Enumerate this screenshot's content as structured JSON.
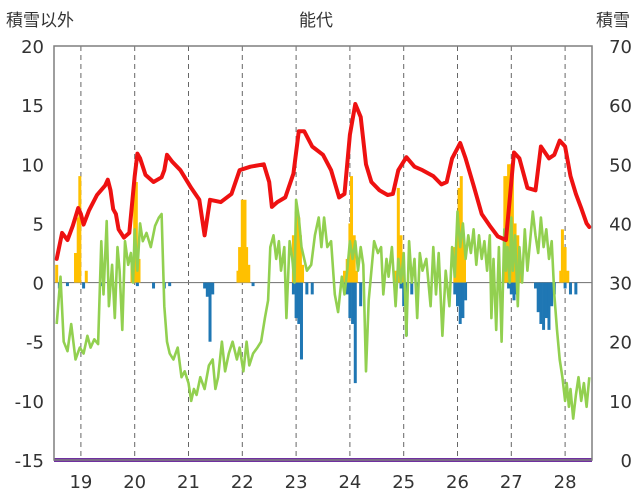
{
  "chart_data": {
    "type": "bar",
    "title": "能代",
    "left_axis_label": "積雪以外",
    "right_axis_label": "積雪",
    "left_ylim": [
      -15,
      20
    ],
    "left_ticks": [
      20,
      15,
      10,
      5,
      0,
      -5,
      -10,
      -15
    ],
    "right_ylim": [
      0,
      70
    ],
    "right_ticks": [
      70,
      60,
      50,
      40,
      30,
      20,
      10,
      0
    ],
    "xlim": [
      18.5,
      28.5
    ],
    "x_ticks": [
      19,
      20,
      21,
      22,
      23,
      24,
      25,
      26,
      27,
      28
    ],
    "x_tick_labels": [
      "19",
      "20",
      "21",
      "22",
      "23",
      "24",
      "25",
      "26",
      "27",
      "28"
    ],
    "grid": "vertical dashed at each day",
    "colors": {
      "red_series": "#ee1111",
      "green_series": "#92d050",
      "orange_bars": "#ffc000",
      "blue_bars": "#1f77b4",
      "snow_depth": "#7030a0"
    },
    "red_series": [
      [
        18.55,
        2.0
      ],
      [
        18.65,
        4.2
      ],
      [
        18.75,
        3.6
      ],
      [
        18.85,
        4.8
      ],
      [
        18.95,
        6.3
      ],
      [
        19.0,
        5.8
      ],
      [
        19.05,
        4.9
      ],
      [
        19.15,
        6.1
      ],
      [
        19.3,
        7.4
      ],
      [
        19.45,
        8.2
      ],
      [
        19.5,
        8.7
      ],
      [
        19.55,
        7.8
      ],
      [
        19.6,
        6.2
      ],
      [
        19.65,
        5.8
      ],
      [
        19.7,
        4.5
      ],
      [
        19.8,
        3.8
      ],
      [
        19.9,
        4.2
      ],
      [
        20.0,
        9.0
      ],
      [
        20.05,
        10.9
      ],
      [
        20.1,
        10.5
      ],
      [
        20.2,
        9.1
      ],
      [
        20.35,
        8.5
      ],
      [
        20.5,
        8.9
      ],
      [
        20.55,
        9.5
      ],
      [
        20.6,
        10.8
      ],
      [
        20.7,
        10.2
      ],
      [
        20.85,
        9.5
      ],
      [
        21.05,
        8.0
      ],
      [
        21.2,
        7.0
      ],
      [
        21.3,
        4.0
      ],
      [
        21.4,
        7.0
      ],
      [
        21.6,
        6.8
      ],
      [
        21.8,
        7.5
      ],
      [
        21.95,
        9.5
      ],
      [
        22.15,
        9.8
      ],
      [
        22.4,
        10.0
      ],
      [
        22.5,
        8.5
      ],
      [
        22.55,
        6.4
      ],
      [
        22.65,
        6.8
      ],
      [
        22.8,
        7.2
      ],
      [
        22.95,
        9.2
      ],
      [
        23.05,
        12.8
      ],
      [
        23.15,
        12.8
      ],
      [
        23.3,
        11.5
      ],
      [
        23.5,
        10.8
      ],
      [
        23.65,
        9.5
      ],
      [
        23.8,
        7.2
      ],
      [
        23.9,
        7.5
      ],
      [
        24.0,
        12.5
      ],
      [
        24.1,
        15.1
      ],
      [
        24.2,
        14.0
      ],
      [
        24.3,
        10.0
      ],
      [
        24.4,
        8.5
      ],
      [
        24.55,
        7.8
      ],
      [
        24.7,
        7.4
      ],
      [
        24.8,
        7.5
      ],
      [
        24.9,
        9.5
      ],
      [
        25.05,
        10.6
      ],
      [
        25.2,
        9.8
      ],
      [
        25.35,
        9.5
      ],
      [
        25.55,
        9.0
      ],
      [
        25.7,
        8.3
      ],
      [
        25.8,
        8.5
      ],
      [
        25.9,
        10.5
      ],
      [
        26.05,
        11.8
      ],
      [
        26.15,
        10.5
      ],
      [
        26.3,
        8.2
      ],
      [
        26.45,
        5.8
      ],
      [
        26.6,
        4.8
      ],
      [
        26.75,
        3.9
      ],
      [
        26.9,
        3.6
      ],
      [
        26.95,
        6.0
      ],
      [
        27.0,
        8.5
      ],
      [
        27.05,
        11.0
      ],
      [
        27.15,
        10.5
      ],
      [
        27.3,
        8.0
      ],
      [
        27.45,
        7.8
      ],
      [
        27.55,
        11.5
      ],
      [
        27.7,
        10.5
      ],
      [
        27.8,
        10.8
      ],
      [
        27.9,
        12.0
      ],
      [
        28.0,
        11.5
      ],
      [
        28.1,
        9.0
      ],
      [
        28.2,
        7.5
      ],
      [
        28.3,
        6.3
      ],
      [
        28.4,
        5.0
      ],
      [
        28.45,
        4.7
      ]
    ],
    "green_series": [
      [
        18.55,
        -3.5
      ],
      [
        18.62,
        0.5
      ],
      [
        18.68,
        -5.0
      ],
      [
        18.75,
        -5.8
      ],
      [
        18.82,
        -3.5
      ],
      [
        18.9,
        -6.5
      ],
      [
        18.98,
        -5.5
      ],
      [
        19.05,
        -6.0
      ],
      [
        19.12,
        -4.5
      ],
      [
        19.18,
        -5.5
      ],
      [
        19.25,
        -4.8
      ],
      [
        19.32,
        -5.2
      ],
      [
        19.38,
        3.5
      ],
      [
        19.42,
        -1.0
      ],
      [
        19.48,
        5.2
      ],
      [
        19.52,
        -2.0
      ],
      [
        19.58,
        1.5
      ],
      [
        19.63,
        -3.0
      ],
      [
        19.68,
        3.0
      ],
      [
        19.72,
        1.0
      ],
      [
        19.77,
        -4.0
      ],
      [
        19.82,
        3.5
      ],
      [
        19.88,
        1.5
      ],
      [
        19.93,
        2.5
      ],
      [
        19.97,
        0.0
      ],
      [
        20.0,
        4.5
      ],
      [
        20.05,
        1.0
      ],
      [
        20.1,
        5.0
      ],
      [
        20.15,
        3.5
      ],
      [
        20.22,
        4.2
      ],
      [
        20.3,
        3.0
      ],
      [
        20.38,
        4.8
      ],
      [
        20.45,
        5.5
      ],
      [
        20.5,
        5.8
      ],
      [
        20.55,
        -2.0
      ],
      [
        20.6,
        -5.0
      ],
      [
        20.65,
        -6.0
      ],
      [
        20.72,
        -6.5
      ],
      [
        20.8,
        -5.5
      ],
      [
        20.87,
        -8.0
      ],
      [
        20.93,
        -7.5
      ],
      [
        21.0,
        -8.5
      ],
      [
        21.05,
        -10.0
      ],
      [
        21.1,
        -9.0
      ],
      [
        21.15,
        -9.5
      ],
      [
        21.22,
        -8.0
      ],
      [
        21.3,
        -9.0
      ],
      [
        21.38,
        -7.0
      ],
      [
        21.45,
        -6.5
      ],
      [
        21.5,
        -9.0
      ],
      [
        21.55,
        -8.0
      ],
      [
        21.62,
        -5.0
      ],
      [
        21.68,
        -7.5
      ],
      [
        21.75,
        -6.0
      ],
      [
        21.82,
        -5.0
      ],
      [
        21.9,
        -6.5
      ],
      [
        21.95,
        -5.5
      ],
      [
        22.02,
        -7.5
      ],
      [
        22.08,
        -5.0
      ],
      [
        22.13,
        -7.0
      ],
      [
        22.2,
        -6.0
      ],
      [
        22.28,
        -5.5
      ],
      [
        22.35,
        -5.0
      ],
      [
        22.42,
        -3.0
      ],
      [
        22.48,
        -1.5
      ],
      [
        22.52,
        3.0
      ],
      [
        22.58,
        4.0
      ],
      [
        22.63,
        2.0
      ],
      [
        22.68,
        3.5
      ],
      [
        22.72,
        1.0
      ],
      [
        22.78,
        3.0
      ],
      [
        22.82,
        -3.0
      ],
      [
        22.88,
        3.5
      ],
      [
        22.93,
        2.0
      ],
      [
        22.97,
        0.0
      ],
      [
        23.0,
        7.0
      ],
      [
        23.05,
        5.5
      ],
      [
        23.1,
        3.0
      ],
      [
        23.15,
        2.0
      ],
      [
        23.2,
        1.0
      ],
      [
        23.28,
        1.5
      ],
      [
        23.35,
        4.0
      ],
      [
        23.42,
        5.5
      ],
      [
        23.47,
        3.0
      ],
      [
        23.52,
        5.5
      ],
      [
        23.58,
        3.0
      ],
      [
        23.65,
        3.5
      ],
      [
        23.72,
        -1.0
      ],
      [
        23.78,
        -2.5
      ],
      [
        23.85,
        0.5
      ],
      [
        23.9,
        -1.0
      ],
      [
        23.95,
        1.0
      ],
      [
        24.0,
        3.5
      ],
      [
        24.05,
        2.0
      ],
      [
        24.1,
        3.5
      ],
      [
        24.15,
        1.0
      ],
      [
        24.2,
        3.0
      ],
      [
        24.25,
        1.5
      ],
      [
        24.3,
        -7.5
      ],
      [
        24.35,
        -1.5
      ],
      [
        24.4,
        1.0
      ],
      [
        24.45,
        3.5
      ],
      [
        24.52,
        2.5
      ],
      [
        24.58,
        3.0
      ],
      [
        24.62,
        -1.0
      ],
      [
        24.68,
        2.0
      ],
      [
        24.72,
        0.5
      ],
      [
        24.78,
        3.0
      ],
      [
        24.85,
        -2.0
      ],
      [
        24.9,
        2.0
      ],
      [
        24.95,
        0.0
      ],
      [
        25.0,
        2.5
      ],
      [
        25.05,
        -4.5
      ],
      [
        25.1,
        3.5
      ],
      [
        25.15,
        0.0
      ],
      [
        25.2,
        2.0
      ],
      [
        25.25,
        -3.0
      ],
      [
        25.3,
        2.5
      ],
      [
        25.35,
        1.0
      ],
      [
        25.42,
        2.0
      ],
      [
        25.5,
        -2.0
      ],
      [
        25.55,
        3.0
      ],
      [
        25.6,
        -1.0
      ],
      [
        25.65,
        2.5
      ],
      [
        25.72,
        -4.5
      ],
      [
        25.78,
        1.0
      ],
      [
        25.85,
        -2.0
      ],
      [
        25.9,
        3.0
      ],
      [
        25.95,
        0.5
      ],
      [
        26.0,
        6.0
      ],
      [
        26.05,
        3.0
      ],
      [
        26.1,
        5.0
      ],
      [
        26.15,
        2.0
      ],
      [
        26.2,
        4.0
      ],
      [
        26.25,
        2.5
      ],
      [
        26.3,
        4.5
      ],
      [
        26.35,
        1.5
      ],
      [
        26.4,
        4.0
      ],
      [
        26.45,
        2.0
      ],
      [
        26.5,
        3.5
      ],
      [
        26.55,
        1.0
      ],
      [
        26.6,
        4.0
      ],
      [
        26.63,
        -3.0
      ],
      [
        26.67,
        2.0
      ],
      [
        26.72,
        -4.0
      ],
      [
        26.77,
        3.0
      ],
      [
        26.82,
        -5.0
      ],
      [
        26.87,
        4.5
      ],
      [
        26.9,
        1.0
      ],
      [
        26.93,
        3.0
      ],
      [
        26.97,
        0.0
      ],
      [
        27.0,
        5.5
      ],
      [
        27.03,
        1.0
      ],
      [
        27.07,
        4.0
      ],
      [
        27.12,
        -2.0
      ],
      [
        27.15,
        3.0
      ],
      [
        27.2,
        0.0
      ],
      [
        27.25,
        4.5
      ],
      [
        27.3,
        1.0
      ],
      [
        27.35,
        3.5
      ],
      [
        27.4,
        6.0
      ],
      [
        27.45,
        4.0
      ],
      [
        27.5,
        2.5
      ],
      [
        27.55,
        5.5
      ],
      [
        27.6,
        3.0
      ],
      [
        27.65,
        4.5
      ],
      [
        27.7,
        2.0
      ],
      [
        27.75,
        3.5
      ],
      [
        27.8,
        -1.0
      ],
      [
        27.85,
        -4.0
      ],
      [
        27.9,
        -6.5
      ],
      [
        27.95,
        -8.0
      ],
      [
        28.0,
        -10.0
      ],
      [
        28.03,
        -8.5
      ],
      [
        28.07,
        -10.5
      ],
      [
        28.1,
        -9.0
      ],
      [
        28.15,
        -11.5
      ],
      [
        28.2,
        -9.5
      ],
      [
        28.25,
        -8.0
      ],
      [
        28.3,
        -10.0
      ],
      [
        28.35,
        -8.5
      ],
      [
        28.4,
        -10.5
      ],
      [
        28.45,
        -8.0
      ]
    ],
    "orange_bars": [
      [
        18.55,
        1.5
      ],
      [
        18.9,
        2.5
      ],
      [
        18.95,
        5.5
      ],
      [
        18.98,
        9.0
      ],
      [
        19.1,
        1.0
      ],
      [
        19.95,
        2.0
      ],
      [
        20.0,
        9.0
      ],
      [
        20.03,
        8.5
      ],
      [
        20.08,
        2.0
      ],
      [
        21.92,
        1.0
      ],
      [
        21.95,
        3.0
      ],
      [
        22.0,
        7.0
      ],
      [
        22.05,
        7.0
      ],
      [
        22.08,
        3.0
      ],
      [
        22.12,
        1.5
      ],
      [
        22.95,
        4.0
      ],
      [
        23.0,
        6.0
      ],
      [
        23.05,
        5.5
      ],
      [
        23.08,
        4.0
      ],
      [
        23.12,
        1.5
      ],
      [
        23.9,
        1.0
      ],
      [
        23.95,
        2.0
      ],
      [
        24.0,
        5.0
      ],
      [
        24.03,
        9.0
      ],
      [
        24.08,
        4.0
      ],
      [
        24.12,
        1.0
      ],
      [
        24.85,
        1.0
      ],
      [
        24.9,
        8.0
      ],
      [
        24.95,
        4.0
      ],
      [
        25.0,
        1.0
      ],
      [
        25.95,
        3.0
      ],
      [
        26.0,
        5.5
      ],
      [
        26.03,
        8.0
      ],
      [
        26.07,
        9.0
      ],
      [
        26.1,
        4.0
      ],
      [
        26.13,
        2.0
      ],
      [
        26.88,
        9.0
      ],
      [
        26.92,
        9.0
      ],
      [
        26.95,
        10.0
      ],
      [
        26.98,
        10.0
      ],
      [
        27.02,
        9.5
      ],
      [
        27.07,
        5.0
      ],
      [
        27.12,
        4.0
      ],
      [
        27.15,
        2.0
      ],
      [
        27.92,
        1.0
      ],
      [
        27.95,
        4.5
      ],
      [
        28.0,
        3.0
      ],
      [
        28.05,
        1.0
      ]
    ],
    "blue_bars": [
      [
        18.6,
        -0.5
      ],
      [
        18.75,
        -0.3
      ],
      [
        19.05,
        -0.5
      ],
      [
        19.4,
        -0.3
      ],
      [
        20.05,
        -0.3
      ],
      [
        20.35,
        -0.5
      ],
      [
        20.55,
        -0.5
      ],
      [
        20.65,
        -0.3
      ],
      [
        21.3,
        -0.5
      ],
      [
        21.35,
        -1.2
      ],
      [
        21.4,
        -5.0
      ],
      [
        21.45,
        -1.0
      ],
      [
        22.2,
        -0.3
      ],
      [
        22.95,
        -1.0
      ],
      [
        23.0,
        -3.0
      ],
      [
        23.05,
        -3.5
      ],
      [
        23.1,
        -6.5
      ],
      [
        23.2,
        -1.0
      ],
      [
        23.3,
        -1.0
      ],
      [
        23.9,
        -0.5
      ],
      [
        23.95,
        -1.0
      ],
      [
        24.0,
        -3.0
      ],
      [
        24.05,
        -3.5
      ],
      [
        24.1,
        -8.5
      ],
      [
        24.2,
        -2.0
      ],
      [
        24.95,
        -0.5
      ],
      [
        25.0,
        -2.0
      ],
      [
        25.05,
        -4.5
      ],
      [
        25.15,
        -1.0
      ],
      [
        25.25,
        -0.5
      ],
      [
        25.95,
        -1.0
      ],
      [
        26.0,
        -2.0
      ],
      [
        26.05,
        -3.5
      ],
      [
        26.1,
        -3.0
      ],
      [
        26.15,
        -1.5
      ],
      [
        26.95,
        -0.5
      ],
      [
        27.0,
        -1.0
      ],
      [
        27.05,
        -1.5
      ],
      [
        27.1,
        -1.0
      ],
      [
        27.45,
        -0.5
      ],
      [
        27.5,
        -2.5
      ],
      [
        27.55,
        -3.5
      ],
      [
        27.6,
        -4.0
      ],
      [
        27.65,
        -3.0
      ],
      [
        27.7,
        -4.0
      ],
      [
        27.75,
        -2.0
      ],
      [
        27.8,
        -1.0
      ],
      [
        28.0,
        -0.5
      ],
      [
        28.1,
        -1.0
      ],
      [
        28.2,
        -1.0
      ]
    ],
    "snow_depth": [
      [
        18.5,
        0
      ],
      [
        28.5,
        0
      ]
    ]
  }
}
